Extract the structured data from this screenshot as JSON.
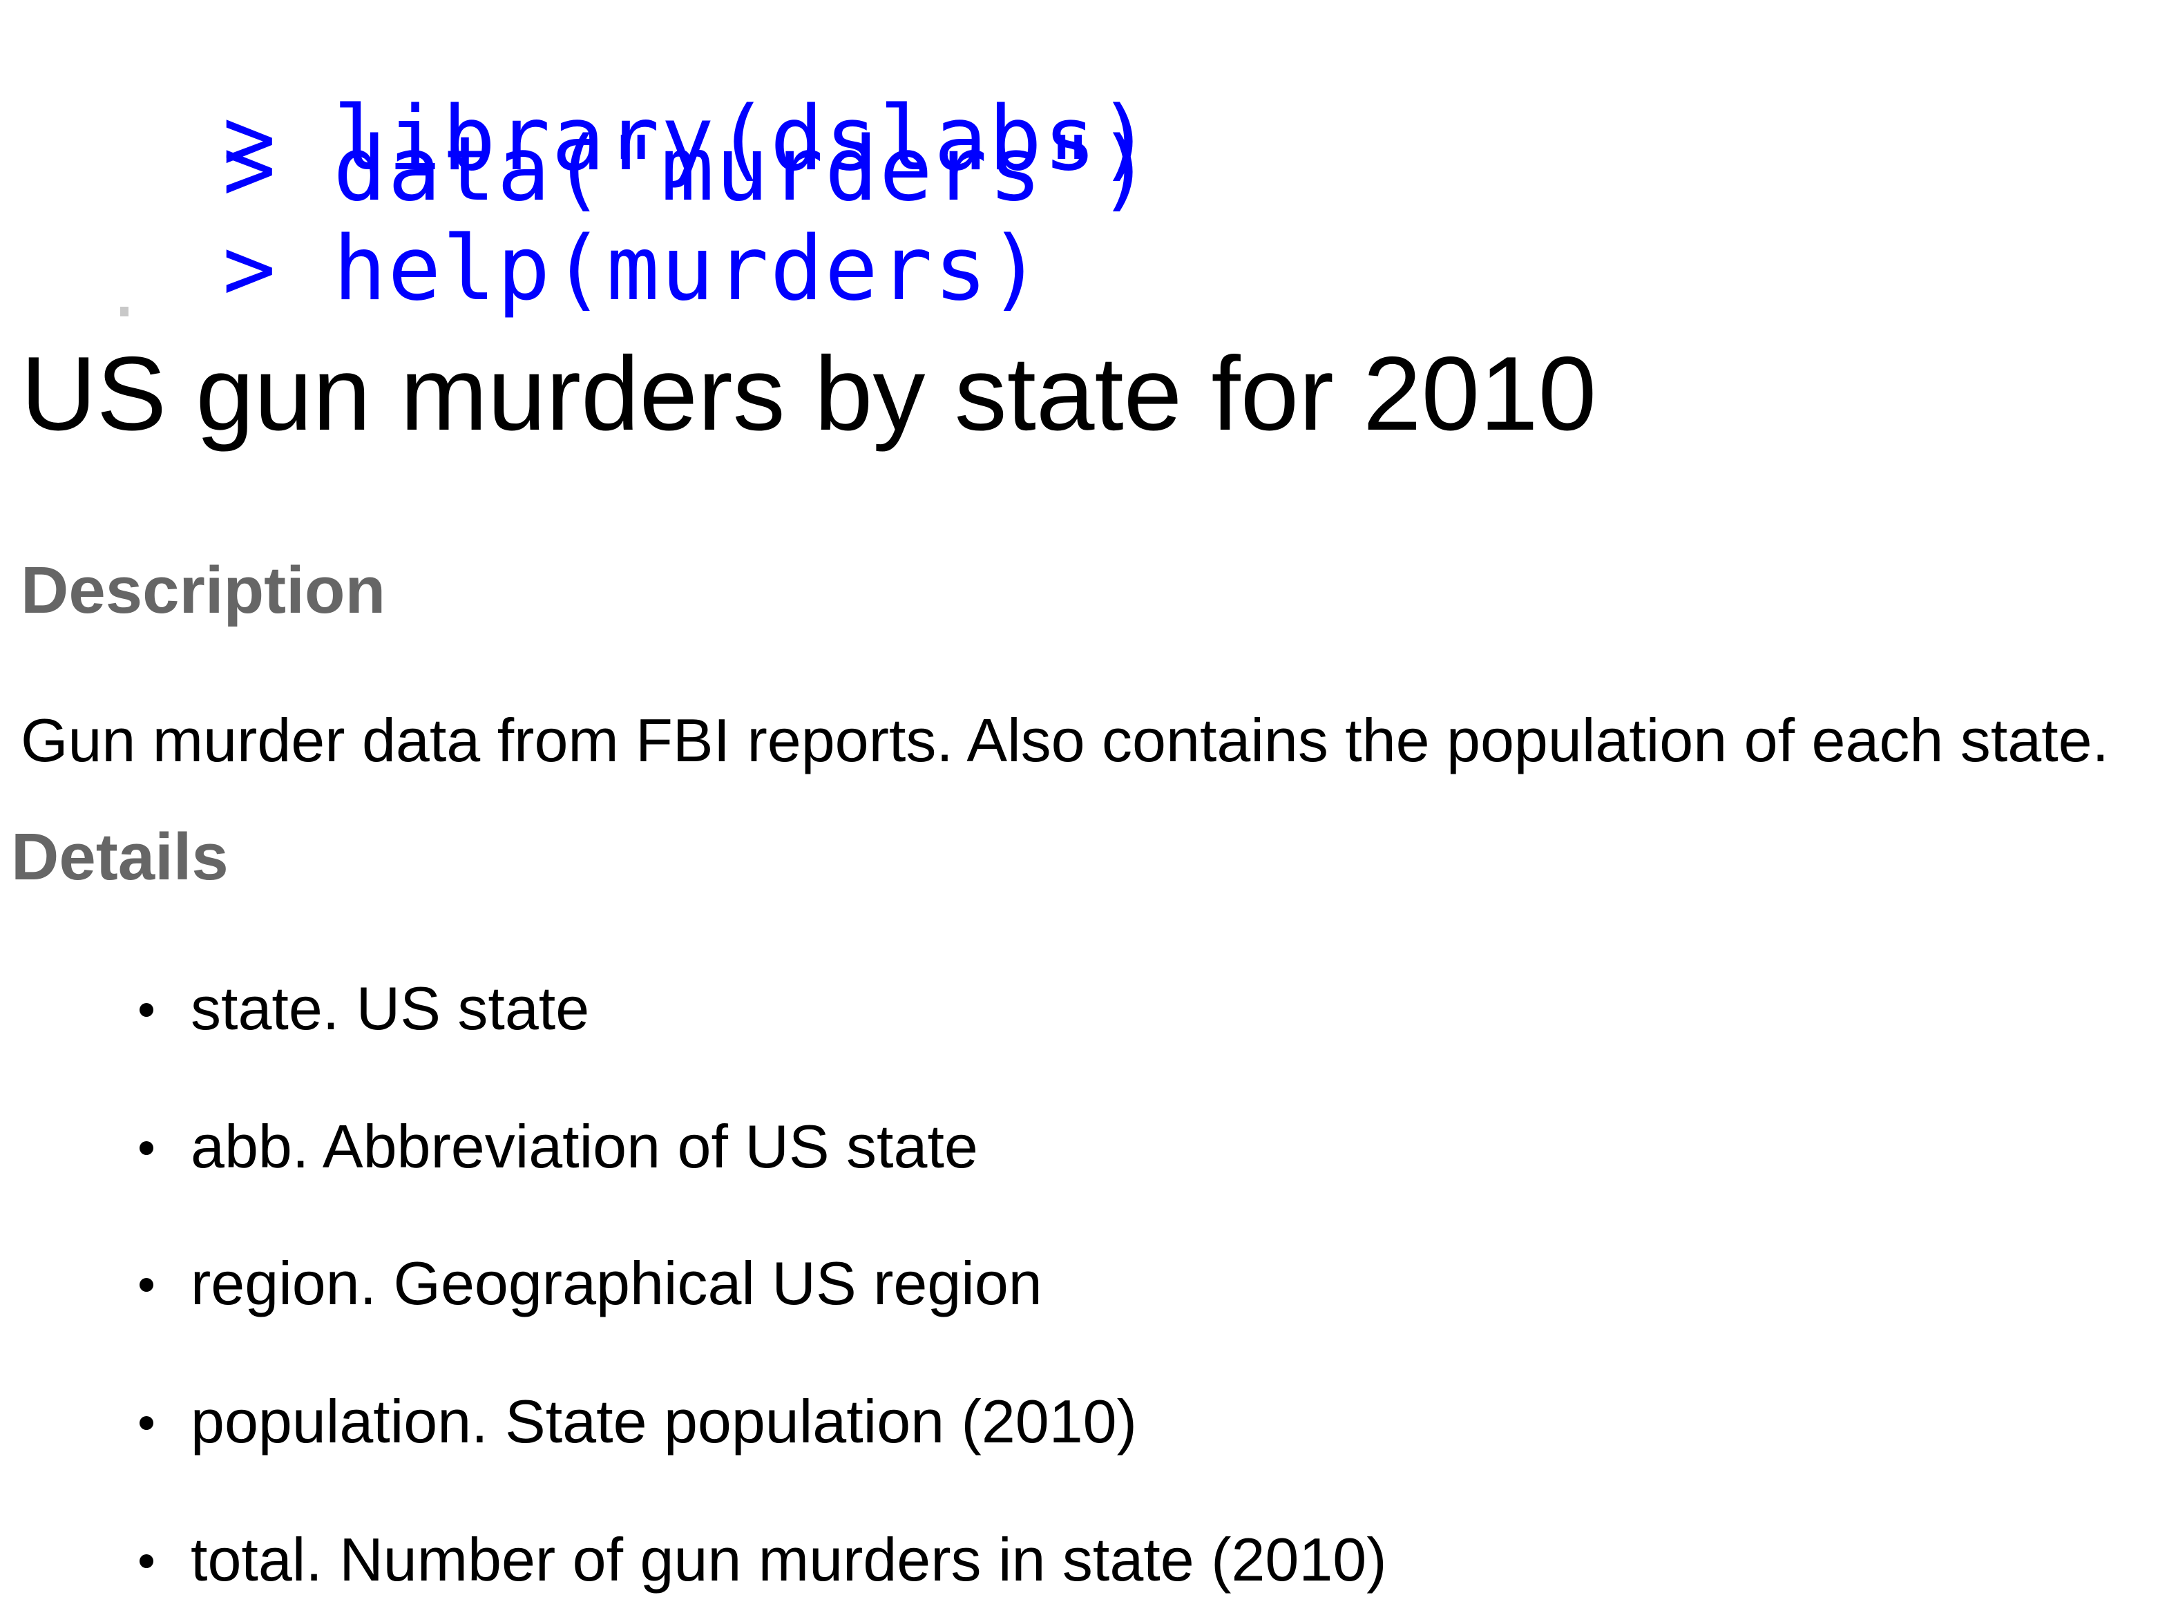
{
  "console": {
    "prompt": ">",
    "commands": [
      "library(dslabs)",
      "data(\"murders\")",
      "help(murders)"
    ]
  },
  "help_page": {
    "title": "US gun murders by state for 2010",
    "description": {
      "heading": "Description",
      "text": "Gun murder data from FBI reports. Also contains the population of each state."
    },
    "details": {
      "heading": "Details",
      "items": [
        "state. US state",
        "abb. Abbreviation of US state",
        "region. Geographical US region",
        "population. State population (2010)",
        "total. Number of gun murders in state (2010)"
      ]
    }
  },
  "colors": {
    "command_text": "#0000ff",
    "heading_text": "#666666",
    "body_text": "#000000"
  }
}
